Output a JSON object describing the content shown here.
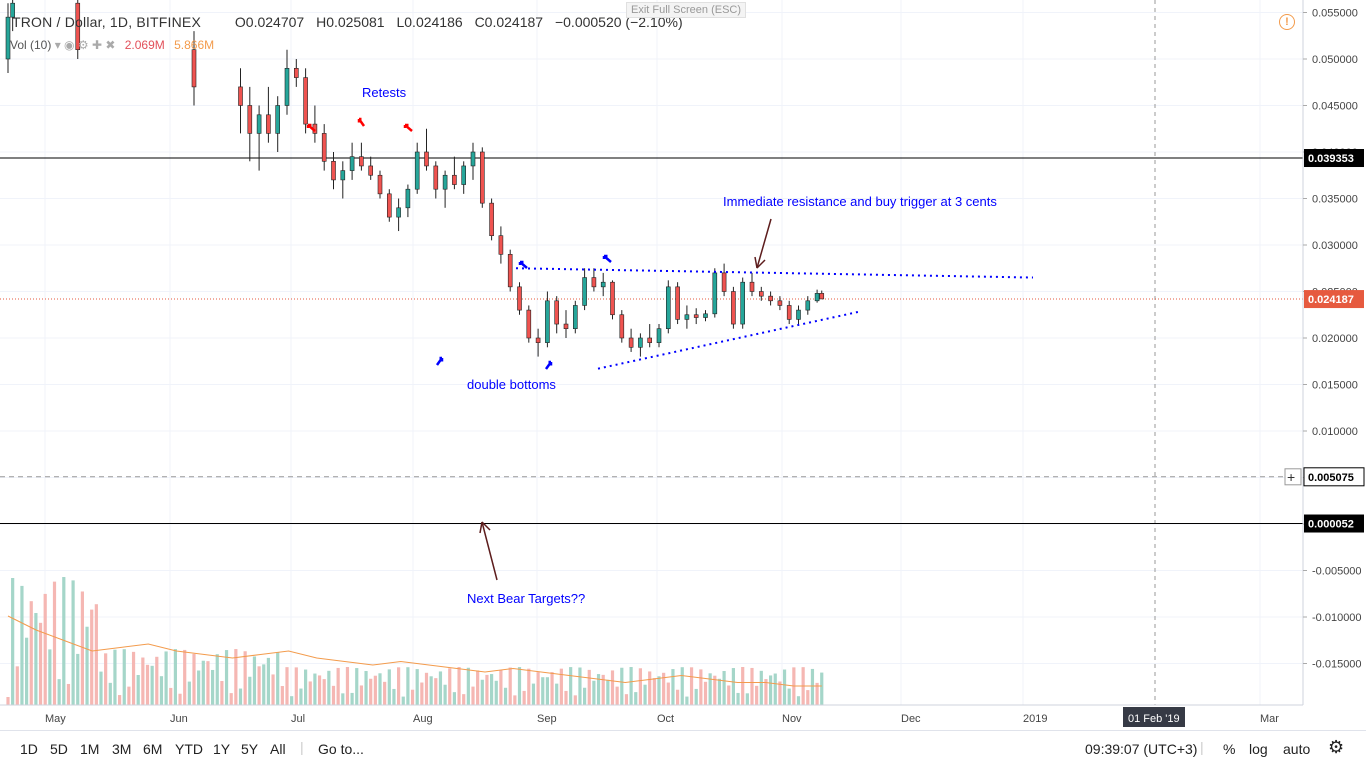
{
  "header": {
    "symbol": "TRON / Dollar, 1D, BITFINEX",
    "open": "O0.024707",
    "high": "H0.025081",
    "low": "L0.024186",
    "close": "C0.024187",
    "change": "−0.000520 (−2.10%)",
    "vol_label": "Vol (10)",
    "vol_value1": "2.069M",
    "vol_value2": "5.866M"
  },
  "exit_fullscreen": "Exit Full Screen (ESC)",
  "toolbar": {
    "ranges": [
      "1D",
      "5D",
      "1M",
      "3M",
      "6M",
      "YTD",
      "1Y",
      "5Y",
      "All"
    ],
    "goto": "Go to...",
    "time": "09:39:07 (UTC+3)",
    "percent": "%",
    "log": "log",
    "auto": "auto"
  },
  "colors": {
    "up": "#26a69a",
    "down": "#ef5350",
    "annotation": "#0000ff",
    "arrow_red": "#ff0000",
    "arrow_brown": "#5d1d1d",
    "price_line": "#e65a3f"
  },
  "chart_data": {
    "type": "candlestick",
    "title": "TRON / Dollar, 1D, BITFINEX",
    "y_ticks": [
      "0.055000",
      "0.050000",
      "0.045000",
      "0.040000",
      "0.035000",
      "0.030000",
      "0.025000",
      "0.020000",
      "0.015000",
      "0.010000",
      "0.005000",
      "0.000000",
      "-0.005000",
      "-0.010000",
      "-0.015000"
    ],
    "x_ticks": [
      "May",
      "Jun",
      "Jul",
      "Aug",
      "Sep",
      "Oct",
      "Nov",
      "Dec",
      "2019",
      "Mar"
    ],
    "x_marker": "01 Feb '19",
    "horizontal_levels": [
      {
        "label": "0.039353",
        "value": 0.039353,
        "style": "solid",
        "color": "#000000"
      },
      {
        "label": "0.024187",
        "value": 0.024187,
        "style": "dotted",
        "color": "#e65a3f"
      },
      {
        "label": "0.005075",
        "value": 0.005075,
        "style": "dashed",
        "color": "#999999"
      },
      {
        "label": "0.000052",
        "value": 5.2e-05,
        "style": "solid",
        "color": "#000000"
      }
    ],
    "annotations": [
      "Retests",
      "Immediate resistance and buy trigger at 3 cents",
      "double bottoms",
      "Next Bear Targets??"
    ],
    "candles": [
      [
        0,
        0.05,
        0.056,
        0.0485,
        0.0545
      ],
      [
        1,
        0.0545,
        0.057,
        0.053,
        0.056
      ],
      [
        15,
        0.056,
        0.057,
        0.05,
        0.051
      ],
      [
        40,
        0.051,
        0.053,
        0.045,
        0.047
      ],
      [
        50,
        0.047,
        0.049,
        0.042,
        0.045
      ],
      [
        52,
        0.045,
        0.047,
        0.039,
        0.042
      ],
      [
        54,
        0.042,
        0.045,
        0.038,
        0.044
      ],
      [
        56,
        0.044,
        0.047,
        0.041,
        0.042
      ],
      [
        58,
        0.042,
        0.046,
        0.04,
        0.045
      ],
      [
        60,
        0.045,
        0.051,
        0.044,
        0.049
      ],
      [
        62,
        0.049,
        0.05,
        0.047,
        0.048
      ],
      [
        64,
        0.048,
        0.049,
        0.042,
        0.043
      ],
      [
        66,
        0.043,
        0.045,
        0.041,
        0.042
      ],
      [
        68,
        0.042,
        0.043,
        0.038,
        0.039
      ],
      [
        70,
        0.039,
        0.04,
        0.036,
        0.037
      ],
      [
        72,
        0.037,
        0.039,
        0.035,
        0.038
      ],
      [
        74,
        0.038,
        0.041,
        0.037,
        0.0395
      ],
      [
        76,
        0.0395,
        0.041,
        0.038,
        0.0385
      ],
      [
        78,
        0.0385,
        0.0395,
        0.037,
        0.0375
      ],
      [
        80,
        0.0375,
        0.038,
        0.035,
        0.0355
      ],
      [
        82,
        0.0355,
        0.036,
        0.0325,
        0.033
      ],
      [
        84,
        0.033,
        0.035,
        0.0315,
        0.034
      ],
      [
        86,
        0.034,
        0.0365,
        0.033,
        0.036
      ],
      [
        88,
        0.036,
        0.041,
        0.0355,
        0.04
      ],
      [
        90,
        0.04,
        0.0425,
        0.038,
        0.0385
      ],
      [
        92,
        0.0385,
        0.039,
        0.035,
        0.036
      ],
      [
        94,
        0.036,
        0.038,
        0.034,
        0.0375
      ],
      [
        96,
        0.0375,
        0.0395,
        0.036,
        0.0365
      ],
      [
        98,
        0.0365,
        0.039,
        0.0355,
        0.0385
      ],
      [
        100,
        0.0385,
        0.041,
        0.037,
        0.04
      ],
      [
        102,
        0.04,
        0.0405,
        0.034,
        0.0345
      ],
      [
        104,
        0.0345,
        0.035,
        0.0305,
        0.031
      ],
      [
        106,
        0.031,
        0.032,
        0.028,
        0.029
      ],
      [
        108,
        0.029,
        0.0295,
        0.025,
        0.0255
      ],
      [
        110,
        0.0255,
        0.026,
        0.0225,
        0.023
      ],
      [
        112,
        0.023,
        0.0235,
        0.0195,
        0.02
      ],
      [
        114,
        0.02,
        0.021,
        0.018,
        0.0195
      ],
      [
        116,
        0.0195,
        0.025,
        0.019,
        0.024
      ],
      [
        118,
        0.024,
        0.0245,
        0.0205,
        0.0215
      ],
      [
        120,
        0.0215,
        0.023,
        0.02,
        0.021
      ],
      [
        122,
        0.021,
        0.024,
        0.0205,
        0.0235
      ],
      [
        124,
        0.0235,
        0.0275,
        0.023,
        0.0265
      ],
      [
        126,
        0.0265,
        0.0275,
        0.025,
        0.0255
      ],
      [
        128,
        0.0255,
        0.027,
        0.0245,
        0.026
      ],
      [
        130,
        0.026,
        0.0262,
        0.022,
        0.0225
      ],
      [
        132,
        0.0225,
        0.023,
        0.0195,
        0.02
      ],
      [
        134,
        0.02,
        0.021,
        0.0185,
        0.019
      ],
      [
        136,
        0.019,
        0.0205,
        0.018,
        0.02
      ],
      [
        138,
        0.02,
        0.0215,
        0.019,
        0.0195
      ],
      [
        140,
        0.0195,
        0.0215,
        0.019,
        0.021
      ],
      [
        142,
        0.021,
        0.0262,
        0.0205,
        0.0255
      ],
      [
        144,
        0.0255,
        0.026,
        0.0215,
        0.022
      ],
      [
        146,
        0.022,
        0.0235,
        0.021,
        0.0225
      ],
      [
        148,
        0.0225,
        0.0232,
        0.0215,
        0.0222
      ],
      [
        150,
        0.0222,
        0.023,
        0.0218,
        0.0226
      ],
      [
        152,
        0.0226,
        0.0275,
        0.0222,
        0.027
      ],
      [
        154,
        0.027,
        0.028,
        0.0245,
        0.025
      ],
      [
        156,
        0.025,
        0.0255,
        0.021,
        0.0215
      ],
      [
        158,
        0.0215,
        0.0265,
        0.021,
        0.026
      ],
      [
        160,
        0.026,
        0.027,
        0.0245,
        0.025
      ],
      [
        162,
        0.025,
        0.0255,
        0.024,
        0.0245
      ],
      [
        164,
        0.0245,
        0.025,
        0.0235,
        0.024
      ],
      [
        166,
        0.024,
        0.0245,
        0.023,
        0.0235
      ],
      [
        168,
        0.0235,
        0.024,
        0.0215,
        0.022
      ],
      [
        170,
        0.022,
        0.0235,
        0.0215,
        0.023
      ],
      [
        172,
        0.023,
        0.0245,
        0.0225,
        0.024
      ],
      [
        174,
        0.024,
        0.0252,
        0.0238,
        0.0248
      ],
      [
        175,
        0.0248,
        0.0251,
        0.0242,
        0.0242
      ]
    ],
    "volume_sma": [
      0.022,
      0.018,
      0.015,
      0.012,
      0.013,
      0.014,
      0.012,
      0.011,
      0.01,
      0.011,
      0.012,
      0.01,
      0.009,
      0.008,
      0.009,
      0.008,
      0.007,
      0.006,
      0.007,
      0.006,
      0.005,
      0.004,
      0.003,
      0.004,
      0.005,
      0.004,
      0.003,
      0.003,
      0.002,
      0.002
    ]
  }
}
